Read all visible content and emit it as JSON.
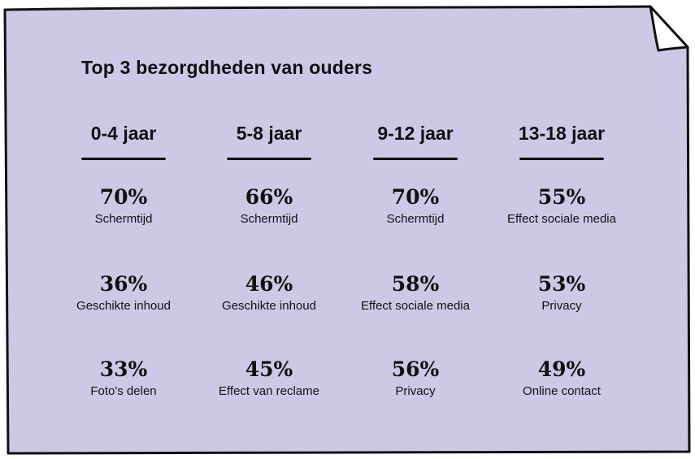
{
  "title": "Top 3 bezorgdheden van ouders",
  "colors": {
    "paper": "#cdc8e6",
    "outline": "#111111",
    "text": "#111111"
  },
  "columns": [
    {
      "header": "0-4 jaar",
      "items": [
        {
          "value": "70%",
          "label": "Schermtijd"
        },
        {
          "value": "36%",
          "label": "Geschikte inhoud"
        },
        {
          "value": "33%",
          "label": "Foto's delen"
        }
      ]
    },
    {
      "header": "5-8 jaar",
      "items": [
        {
          "value": "66%",
          "label": "Schermtijd"
        },
        {
          "value": "46%",
          "label": "Geschikte inhoud"
        },
        {
          "value": "45%",
          "label": "Effect van reclame"
        }
      ]
    },
    {
      "header": "9-12 jaar",
      "items": [
        {
          "value": "70%",
          "label": "Schermtijd"
        },
        {
          "value": "58%",
          "label": "Effect sociale media"
        },
        {
          "value": "56%",
          "label": "Privacy"
        }
      ]
    },
    {
      "header": "13-18 jaar",
      "items": [
        {
          "value": "55%",
          "label": "Effect sociale media"
        },
        {
          "value": "53%",
          "label": "Privacy"
        },
        {
          "value": "49%",
          "label": "Online contact"
        }
      ]
    }
  ]
}
